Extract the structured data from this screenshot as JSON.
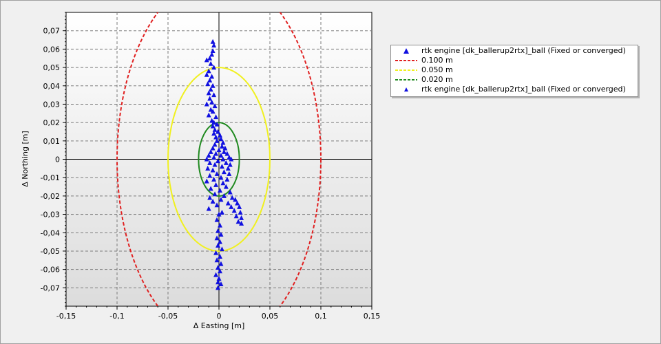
{
  "chart_data": {
    "type": "scatter",
    "title": "",
    "xlabel": "Δ Easting [m]",
    "ylabel": "Δ Northing [m]",
    "xlim": [
      -0.15,
      0.15
    ],
    "ylim": [
      -0.08,
      0.08
    ],
    "x_ticks": [
      "-0,15",
      "-0,1",
      "-0,05",
      "0",
      "0,05",
      "0,1",
      "0,15"
    ],
    "x_tick_values": [
      -0.15,
      -0.1,
      -0.05,
      0,
      0.05,
      0.1,
      0.15
    ],
    "y_ticks": [
      "0,07",
      "0,06",
      "0,05",
      "0,04",
      "0,03",
      "0,02",
      "0,01",
      "0",
      "-0,01",
      "-0,02",
      "-0,03",
      "-0,04",
      "-0,05",
      "-0,06",
      "-0,07"
    ],
    "y_tick_values": [
      0.07,
      0.06,
      0.05,
      0.04,
      0.03,
      0.02,
      0.01,
      0,
      -0.01,
      -0.02,
      -0.03,
      -0.04,
      -0.05,
      -0.06,
      -0.07
    ],
    "grid": true,
    "legend_position": "right",
    "circles": [
      {
        "name": "0.100 m",
        "radius": 0.1,
        "color": "#e02020",
        "style": "dashed"
      },
      {
        "name": "0.050 m",
        "radius": 0.05,
        "color": "#f0f020",
        "style": "dashed"
      },
      {
        "name": "0.020 m",
        "radius": 0.02,
        "color": "#208a20",
        "style": "dashed"
      }
    ],
    "series": [
      {
        "name": "rtk engine [dk_ballerup2rtx]_ball (Fixed or converged)",
        "marker": "triangle",
        "color": "#1010e0",
        "points": [
          [
            -0.006,
            0.064
          ],
          [
            -0.005,
            0.062
          ],
          [
            -0.006,
            0.059
          ],
          [
            -0.007,
            0.057
          ],
          [
            -0.009,
            0.055
          ],
          [
            -0.012,
            0.054
          ],
          [
            -0.008,
            0.052
          ],
          [
            -0.005,
            0.05
          ],
          [
            -0.01,
            0.048
          ],
          [
            -0.012,
            0.046
          ],
          [
            -0.007,
            0.045
          ],
          [
            -0.009,
            0.043
          ],
          [
            -0.011,
            0.041
          ],
          [
            -0.006,
            0.04
          ],
          [
            -0.008,
            0.038
          ],
          [
            -0.01,
            0.036
          ],
          [
            -0.005,
            0.035
          ],
          [
            -0.009,
            0.033
          ],
          [
            -0.007,
            0.031
          ],
          [
            -0.012,
            0.03
          ],
          [
            -0.004,
            0.029
          ],
          [
            -0.008,
            0.027
          ],
          [
            -0.006,
            0.026
          ],
          [
            -0.01,
            0.024
          ],
          [
            -0.003,
            0.023
          ],
          [
            -0.007,
            0.021
          ],
          [
            -0.005,
            0.02
          ],
          [
            -0.002,
            0.019
          ],
          [
            -0.006,
            0.018
          ],
          [
            -0.004,
            0.016
          ],
          [
            -0.001,
            0.015
          ],
          [
            -0.005,
            0.014
          ],
          [
            0.001,
            0.013
          ],
          [
            -0.003,
            0.012
          ],
          [
            0.002,
            0.011
          ],
          [
            -0.002,
            0.01
          ],
          [
            0.004,
            0.009
          ],
          [
            -0.004,
            0.008
          ],
          [
            0.003,
            0.007
          ],
          [
            0.006,
            0.006
          ],
          [
            -0.006,
            0.006
          ],
          [
            0.0,
            0.005
          ],
          [
            0.005,
            0.004
          ],
          [
            -0.008,
            0.004
          ],
          [
            0.008,
            0.003
          ],
          [
            -0.003,
            0.003
          ],
          [
            0.002,
            0.002
          ],
          [
            -0.01,
            0.002
          ],
          [
            0.01,
            0.001
          ],
          [
            -0.005,
            0.001
          ],
          [
            0.004,
            0.0
          ],
          [
            -0.012,
            0.0
          ],
          [
            0.012,
            0.0
          ],
          [
            -0.001,
            -0.001
          ],
          [
            0.007,
            -0.002
          ],
          [
            -0.009,
            -0.002
          ],
          [
            0.011,
            -0.003
          ],
          [
            -0.004,
            -0.003
          ],
          [
            0.003,
            -0.004
          ],
          [
            -0.011,
            -0.005
          ],
          [
            0.009,
            -0.005
          ],
          [
            -0.006,
            -0.006
          ],
          [
            0.005,
            -0.007
          ],
          [
            -0.002,
            -0.008
          ],
          [
            0.01,
            -0.008
          ],
          [
            -0.009,
            -0.009
          ],
          [
            0.002,
            -0.01
          ],
          [
            -0.005,
            -0.011
          ],
          [
            0.008,
            -0.011
          ],
          [
            -0.012,
            -0.012
          ],
          [
            0.004,
            -0.013
          ],
          [
            -0.003,
            -0.014
          ],
          [
            0.007,
            -0.015
          ],
          [
            -0.008,
            -0.016
          ],
          [
            0.001,
            -0.017
          ],
          [
            0.011,
            -0.018
          ],
          [
            -0.004,
            -0.019
          ],
          [
            0.005,
            -0.02
          ],
          [
            -0.009,
            -0.021
          ],
          [
            0.013,
            -0.021
          ],
          [
            0.002,
            -0.022
          ],
          [
            -0.006,
            -0.023
          ],
          [
            0.016,
            -0.022
          ],
          [
            0.009,
            -0.024
          ],
          [
            -0.002,
            -0.025
          ],
          [
            0.018,
            -0.024
          ],
          [
            0.012,
            -0.026
          ],
          [
            -0.01,
            -0.027
          ],
          [
            0.02,
            -0.026
          ],
          [
            0.015,
            -0.028
          ],
          [
            0.003,
            -0.029
          ],
          [
            0.021,
            -0.029
          ],
          [
            0.017,
            -0.031
          ],
          [
            0.022,
            -0.032
          ],
          [
            0.019,
            -0.034
          ],
          [
            0.022,
            -0.035
          ],
          [
            0.0,
            -0.03
          ],
          [
            -0.002,
            -0.033
          ],
          [
            0.001,
            -0.036
          ],
          [
            -0.001,
            -0.039
          ],
          [
            0.002,
            -0.041
          ],
          [
            -0.002,
            -0.043
          ],
          [
            0.001,
            -0.045
          ],
          [
            -0.001,
            -0.047
          ],
          [
            0.003,
            -0.049
          ],
          [
            -0.003,
            -0.051
          ],
          [
            0.001,
            -0.053
          ],
          [
            -0.002,
            -0.055
          ],
          [
            0.002,
            -0.057
          ],
          [
            -0.001,
            -0.059
          ],
          [
            0.001,
            -0.061
          ],
          [
            -0.003,
            -0.063
          ],
          [
            0.0,
            -0.065
          ],
          [
            -0.001,
            -0.067
          ],
          [
            0.002,
            -0.068
          ],
          [
            -0.001,
            -0.07
          ]
        ]
      }
    ]
  },
  "legend": {
    "items": [
      {
        "label": "rtk engine [dk_ballerup2rtx]_ball (Fixed or converged)",
        "kind": "triangle",
        "color": "#1010e0"
      },
      {
        "label": "0.100 m",
        "kind": "dashed",
        "color": "#e02020"
      },
      {
        "label": "0.050 m",
        "kind": "dashed",
        "color": "#f0f020"
      },
      {
        "label": "0.020 m",
        "kind": "dashed",
        "color": "#208a20"
      },
      {
        "label": "rtk engine [dk_ballerup2rtx]_ball (Fixed or converged)",
        "kind": "triangle-small",
        "color": "#1010e0"
      }
    ]
  }
}
